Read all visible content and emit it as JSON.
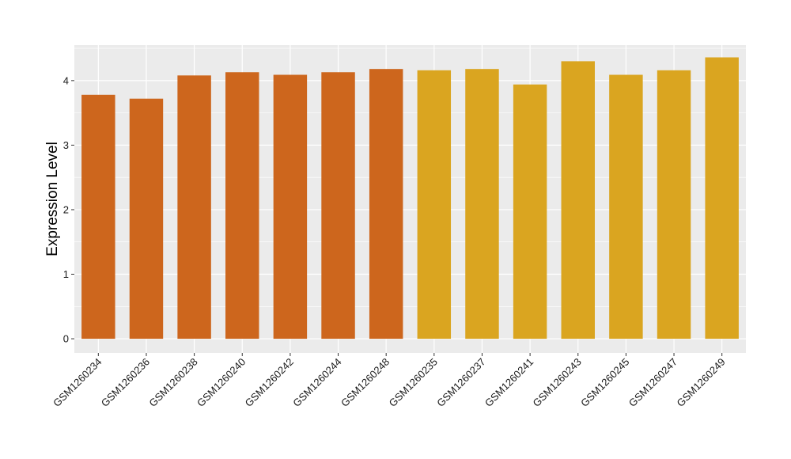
{
  "chart_data": {
    "type": "bar",
    "title": "",
    "xlabel": "",
    "ylabel": "Expression Level",
    "ylim": [
      -0.22,
      4.55
    ],
    "yticks": [
      0,
      1,
      2,
      3,
      4
    ],
    "grid": true,
    "categories": [
      "GSM1260234",
      "GSM1260236",
      "GSM1260238",
      "GSM1260240",
      "GSM1260242",
      "GSM1260244",
      "GSM1260248",
      "GSM1260235",
      "GSM1260237",
      "GSM1260241",
      "GSM1260243",
      "GSM1260245",
      "GSM1260247",
      "GSM1260249"
    ],
    "values": [
      3.78,
      3.72,
      4.08,
      4.13,
      4.09,
      4.13,
      4.18,
      4.16,
      4.18,
      3.94,
      4.3,
      4.09,
      4.16,
      4.36
    ],
    "groups": [
      0,
      0,
      0,
      0,
      0,
      0,
      0,
      1,
      1,
      1,
      1,
      1,
      1,
      1
    ],
    "group_colors": [
      "#cd661d",
      "#daa520"
    ],
    "panel_background": "#ebebeb",
    "grid_color": "#ffffff"
  }
}
